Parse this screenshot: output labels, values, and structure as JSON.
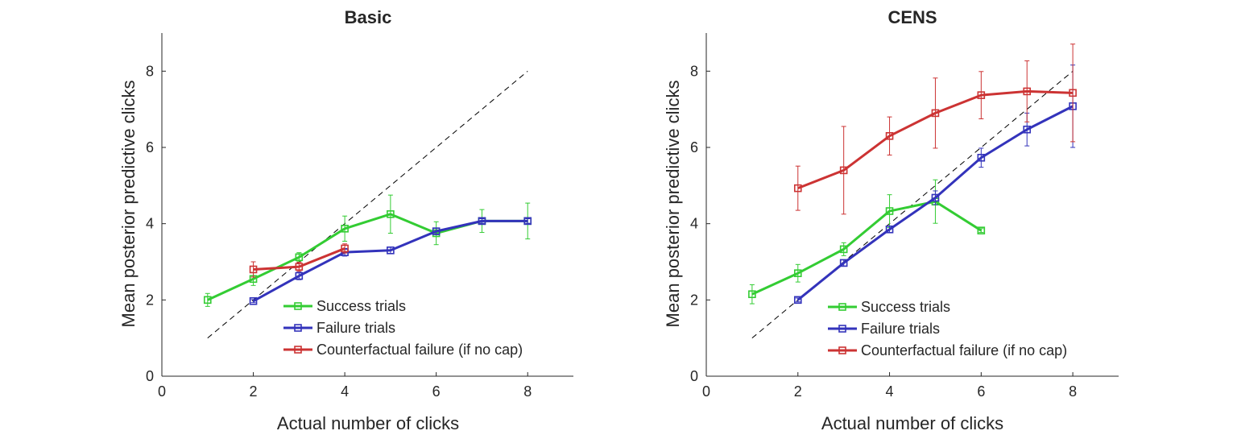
{
  "chart_data": [
    {
      "type": "line",
      "title": "Basic",
      "xlabel": "Actual number of clicks",
      "ylabel": "Mean posterior predictive clicks",
      "xlim": [
        0,
        9
      ],
      "ylim": [
        0,
        9
      ],
      "xticks": [
        0,
        2,
        4,
        6,
        8
      ],
      "yticks": [
        0,
        2,
        4,
        6,
        8
      ],
      "reference_line": {
        "style": "dashed",
        "color": "#000000",
        "x": [
          1,
          8
        ],
        "y": [
          1,
          8
        ]
      },
      "legend": {
        "placement": "bottom-right",
        "entries": [
          "Success trials",
          "Failure trials",
          "Counterfactual failure (if no cap)"
        ]
      },
      "series": [
        {
          "name": "Success trials",
          "color": "#33cc33",
          "x": [
            1,
            2,
            3,
            4,
            5,
            6,
            7,
            8
          ],
          "y": [
            2.0,
            2.55,
            3.12,
            3.87,
            4.25,
            3.75,
            4.07,
            4.07
          ],
          "err": [
            0.17,
            0.17,
            0.12,
            0.33,
            0.5,
            0.3,
            0.3,
            0.47
          ]
        },
        {
          "name": "Failure trials",
          "color": "#3333bb",
          "x": [
            2,
            3,
            4,
            5,
            6,
            7,
            8
          ],
          "y": [
            1.97,
            2.63,
            3.25,
            3.3,
            3.8,
            4.07,
            4.07
          ],
          "err": [
            0.04,
            0.1,
            0.1,
            0.08,
            0.08,
            0.06,
            0.06
          ]
        },
        {
          "name": "Counterfactual failure (if no cap)",
          "color": "#cc3333",
          "x": [
            2,
            3,
            4
          ],
          "y": [
            2.8,
            2.87,
            3.35
          ],
          "err": [
            0.2,
            0.12,
            0.12
          ]
        }
      ]
    },
    {
      "type": "line",
      "title": "CENS",
      "xlabel": "Actual number of clicks",
      "ylabel": "Mean posterior predictive clicks",
      "xlim": [
        0,
        9
      ],
      "ylim": [
        0,
        9
      ],
      "xticks": [
        0,
        2,
        4,
        6,
        8
      ],
      "yticks": [
        0,
        2,
        4,
        6,
        8
      ],
      "reference_line": {
        "style": "dashed",
        "color": "#000000",
        "x": [
          1,
          8
        ],
        "y": [
          1,
          8
        ]
      },
      "legend": {
        "placement": "bottom-right",
        "entries": [
          "Success trials",
          "Failure trials",
          "Counterfactual failure (if no cap)"
        ]
      },
      "series": [
        {
          "name": "Success trials",
          "color": "#33cc33",
          "x": [
            1,
            2,
            3,
            4,
            5,
            6
          ],
          "y": [
            2.15,
            2.7,
            3.33,
            4.33,
            4.58,
            3.82
          ],
          "err": [
            0.25,
            0.23,
            0.17,
            0.43,
            0.57,
            0.05
          ]
        },
        {
          "name": "Failure trials",
          "color": "#3333bb",
          "x": [
            2,
            3,
            4,
            5,
            6,
            7,
            8
          ],
          "y": [
            2.0,
            2.97,
            3.85,
            4.68,
            5.73,
            6.47,
            7.08
          ],
          "err": [
            0.05,
            0.08,
            0.08,
            0.18,
            0.25,
            0.43,
            1.08
          ]
        },
        {
          "name": "Counterfactual failure (if no cap)",
          "color": "#cc3333",
          "x": [
            2,
            3,
            4,
            5,
            6,
            7,
            8
          ],
          "y": [
            4.93,
            5.4,
            6.3,
            6.9,
            7.37,
            7.47,
            7.43
          ],
          "err": [
            0.58,
            1.15,
            0.5,
            0.92,
            0.62,
            0.8,
            1.28
          ]
        }
      ]
    }
  ]
}
